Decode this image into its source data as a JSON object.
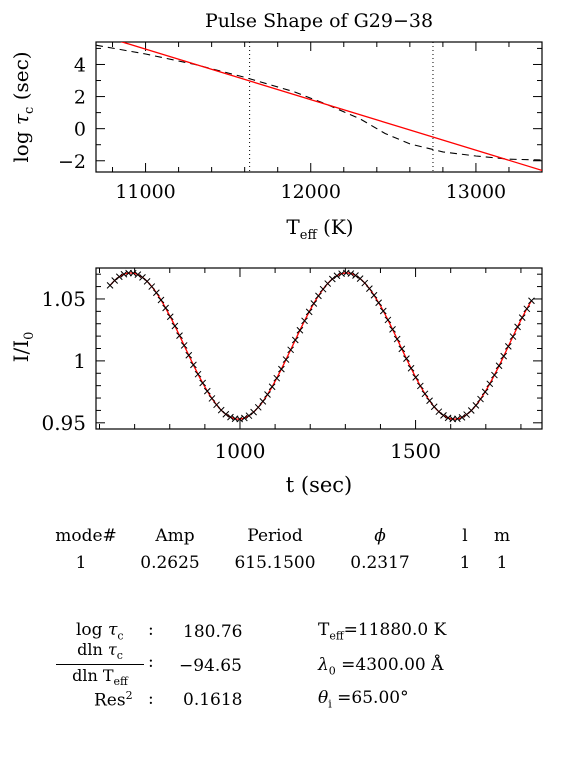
{
  "colors": {
    "model": "#ff0000",
    "axis": "#000000"
  },
  "charts": {
    "top": {
      "title": "Pulse Shape of G29−38",
      "ylabel_pre": "log ",
      "ylabel_tau": "τ",
      "ylabel_sub": "c",
      "ylabel_post": " (sec)",
      "xlabel_T": "T",
      "xlabel_sub": "eff",
      "xlabel_post": " (K)",
      "xticks": [
        "11000",
        "12000",
        "13000"
      ],
      "yticks": [
        "4",
        "2",
        "0",
        "−2"
      ]
    },
    "bottom": {
      "ylabel_I": "I/I",
      "ylabel_sub": "0",
      "xlabel": "t (sec)",
      "xticks": [
        "1000",
        "1500"
      ],
      "yticks": [
        "1.05",
        "1",
        "0.95"
      ]
    }
  },
  "chart_data": [
    {
      "type": "line",
      "title": "Pulse Shape of G29−38",
      "xlabel": "T_eff (K)",
      "ylabel": "log τ_c (sec)",
      "xlim": [
        10700,
        13400
      ],
      "ylim": [
        -2.7,
        5.4
      ],
      "series": [
        {
          "style": "solid-red",
          "x": [
            10700,
            13400
          ],
          "y": [
            5.9,
            -2.6
          ]
        },
        {
          "style": "dashed-black",
          "x": [
            10700,
            11000,
            11300,
            11600,
            11900,
            12100,
            12300,
            12450,
            12600,
            12800,
            13000,
            13200,
            13400
          ],
          "y": [
            5.2,
            4.65,
            4.0,
            3.2,
            2.3,
            1.5,
            0.6,
            -0.3,
            -0.95,
            -1.45,
            -1.7,
            -1.9,
            -1.95
          ]
        }
      ],
      "vlines": [
        11630,
        12740
      ],
      "grid": false
    },
    {
      "type": "scatter",
      "xlabel": "t (sec)",
      "ylabel": "I/I_0",
      "xlim": [
        590,
        1860
      ],
      "ylim": [
        0.945,
        1.075
      ],
      "model": {
        "mean": 1.012,
        "amplitude": 0.059,
        "period": 615.15,
        "peak_t": 688
      },
      "observations": {
        "t_start": 630,
        "t_end": 1830,
        "count": 92
      }
    }
  ],
  "modes_table": {
    "headers": [
      "mode#",
      "Amp",
      "Period",
      "ϕ",
      "l",
      "m"
    ],
    "rows": [
      [
        "1",
        "0.2625",
        "615.1500",
        "0.2317",
        "1",
        "1"
      ]
    ]
  },
  "params": {
    "log_tau_label_pre": "log ",
    "log_tau_label_tau": "τ",
    "log_tau_label_sub": "c",
    "log_tau_value": "180.76",
    "dln_num_pre": "dln ",
    "dln_num_tau": "τ",
    "dln_num_sub": "c",
    "dln_den_pre": "dln T",
    "dln_den_sub": "eff",
    "dln_value": "−94.65",
    "res_label": "Res",
    "res_sup": "2",
    "res_value": "0.1618",
    "colon": ":",
    "teff_label": "T",
    "teff_sub": "eff",
    "teff_value": "=11880.0 K",
    "lambda_label": "λ",
    "lambda_sub": "0",
    "lambda_value": " =4300.00 Å",
    "theta_label": "θ",
    "theta_sub": "i",
    "theta_value": " =65.00°"
  }
}
